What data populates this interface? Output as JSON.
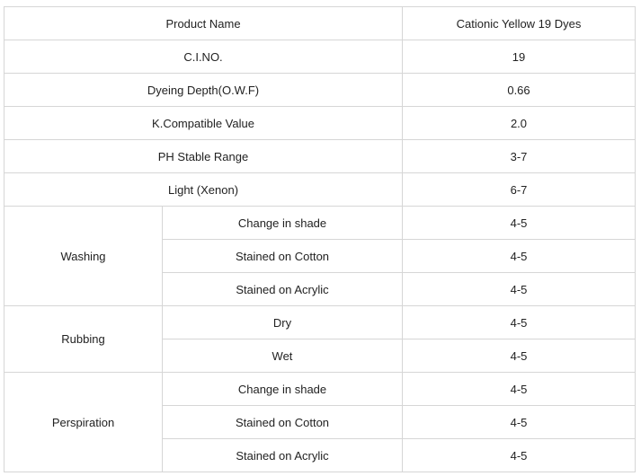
{
  "table": {
    "header": {
      "label": "Product Name",
      "value": "Cationic Yellow 19 Dyes"
    },
    "properties": [
      {
        "label": "C.I.NO.",
        "value": "19"
      },
      {
        "label": "Dyeing Depth(O.W.F)",
        "value": "0.66"
      },
      {
        "label": "K.Compatible Value",
        "value": "2.0"
      },
      {
        "label": "PH Stable Range",
        "value": "3-7"
      },
      {
        "label": "Light (Xenon)",
        "value": "6-7"
      }
    ],
    "groups": [
      {
        "name": "Washing",
        "rows": [
          {
            "label": "Change in shade",
            "value": "4-5"
          },
          {
            "label": "Stained on Cotton",
            "value": "4-5"
          },
          {
            "label": "Stained on Acrylic",
            "value": "4-5"
          }
        ]
      },
      {
        "name": "Rubbing",
        "rows": [
          {
            "label": "Dry",
            "value": "4-5"
          },
          {
            "label": "Wet",
            "value": "4-5"
          }
        ]
      },
      {
        "name": "Perspiration",
        "rows": [
          {
            "label": "Change in shade",
            "value": "4-5"
          },
          {
            "label": "Stained on Cotton",
            "value": "4-5"
          },
          {
            "label": "Stained on Acrylic",
            "value": "4-5"
          }
        ]
      }
    ]
  }
}
